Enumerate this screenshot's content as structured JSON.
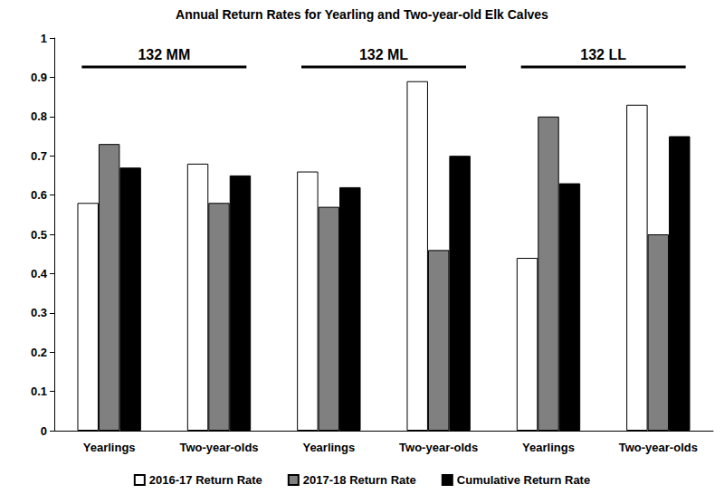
{
  "chart_data": {
    "type": "bar",
    "title": "Annual Return Rates for Yearling and Two-year-old Elk Calves",
    "groups": [
      "132 MM",
      "132 ML",
      "132 LL"
    ],
    "categories": [
      "Yearlings",
      "Two-year-olds",
      "Yearlings",
      "Two-year-olds",
      "Yearlings",
      "Two-year-olds"
    ],
    "series": [
      {
        "name": "2016-17 Return Rate",
        "color": "#ffffff",
        "values": [
          0.58,
          0.68,
          0.66,
          0.89,
          0.44,
          0.83
        ]
      },
      {
        "name": "2017-18 Return Rate",
        "color": "#808080",
        "values": [
          0.73,
          0.58,
          0.57,
          0.46,
          0.8,
          0.5
        ]
      },
      {
        "name": "Cumulative Return Rate",
        "color": "#000000",
        "values": [
          0.67,
          0.65,
          0.62,
          0.7,
          0.63,
          0.75
        ]
      }
    ],
    "ylim": [
      0,
      1
    ],
    "yticks": [
      0,
      0.1,
      0.2,
      0.3,
      0.4,
      0.5,
      0.6,
      0.7,
      0.8,
      0.9,
      1
    ],
    "grid": false,
    "legend": "bottom"
  }
}
